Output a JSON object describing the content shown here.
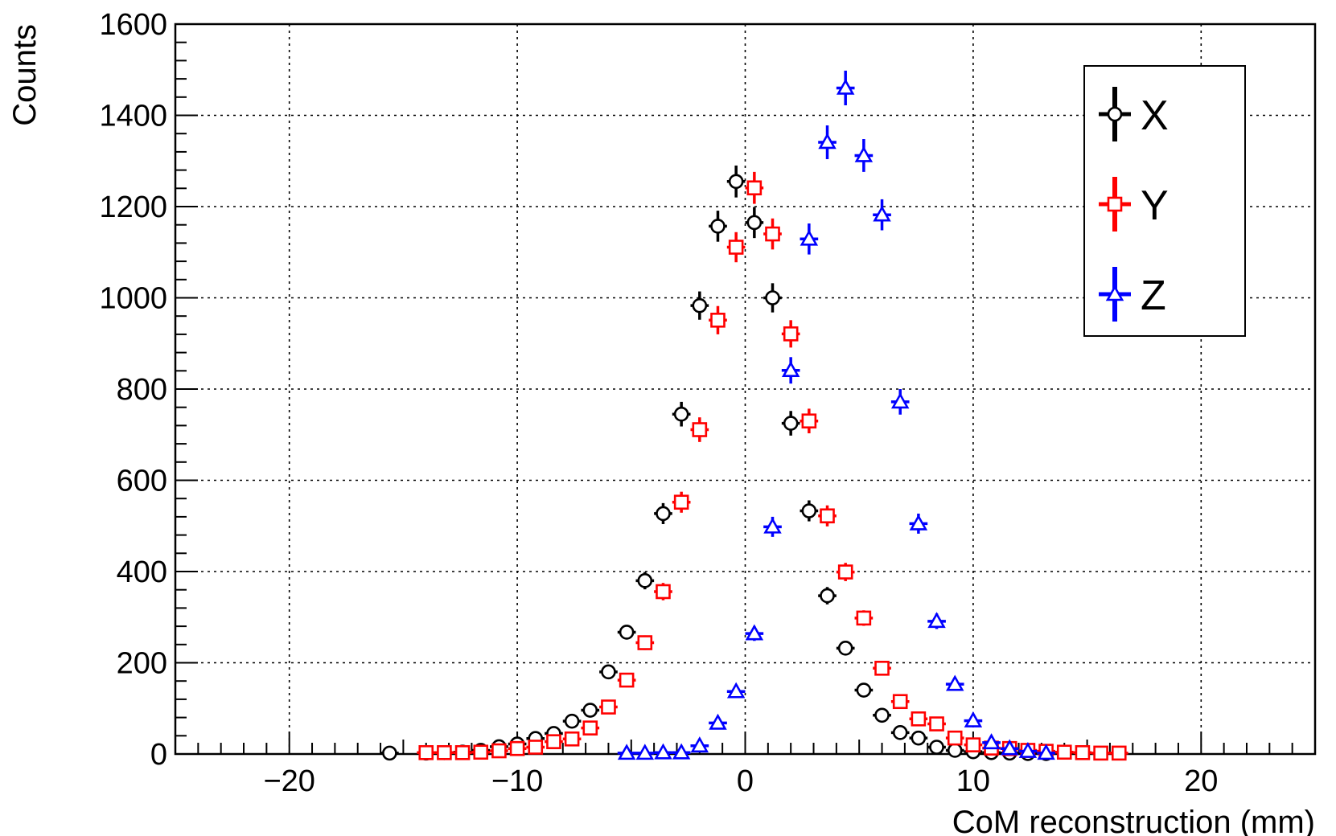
{
  "chart_data": {
    "type": "scatter",
    "title": "",
    "xlabel": "CoM reconstruction (mm)",
    "ylabel": "Counts",
    "xlim": [
      -25,
      25
    ],
    "ylim": [
      0,
      1600
    ],
    "xticks": [
      -20,
      -10,
      0,
      10,
      20
    ],
    "xtick_labels": [
      "−20",
      "−10",
      "0",
      "10",
      "20"
    ],
    "yticks": [
      0,
      200,
      400,
      600,
      800,
      1000,
      1200,
      1400,
      1600
    ],
    "ytick_labels": [
      "0",
      "200",
      "400",
      "600",
      "800",
      "1000",
      "1200",
      "1400",
      "1600"
    ],
    "grid": true,
    "legend_position": "top-right",
    "series": [
      {
        "name": "X",
        "color": "#000000",
        "marker": "circle",
        "x": [
          -15.6,
          -14.0,
          -13.2,
          -12.4,
          -11.6,
          -10.8,
          -10.0,
          -9.2,
          -8.4,
          -7.6,
          -6.8,
          -6.0,
          -5.2,
          -4.4,
          -3.6,
          -2.8,
          -2.0,
          -1.2,
          -0.4,
          0.4,
          1.2,
          2.0,
          2.8,
          3.6,
          4.4,
          5.2,
          6.0,
          6.8,
          7.6,
          8.4,
          9.2,
          10.0,
          10.8,
          11.6,
          12.4,
          13.2
        ],
        "y": [
          2,
          2,
          3,
          4,
          8,
          16,
          22,
          34,
          45,
          72,
          96,
          180,
          267,
          380,
          527,
          745,
          983,
          1157,
          1255,
          1165,
          1000,
          725,
          533,
          347,
          232,
          140,
          85,
          47,
          35,
          15,
          8,
          5,
          3,
          2,
          1,
          1
        ],
        "yerr": [
          1,
          1,
          2,
          2,
          3,
          4,
          5,
          6,
          7,
          8,
          10,
          13,
          16,
          19,
          23,
          27,
          31,
          34,
          35,
          34,
          32,
          27,
          23,
          19,
          15,
          12,
          9,
          7,
          6,
          4,
          3,
          2,
          2,
          1,
          1,
          1
        ]
      },
      {
        "name": "Y",
        "color": "#ff0000",
        "marker": "square",
        "x": [
          -14.0,
          -13.2,
          -12.4,
          -11.6,
          -10.8,
          -10.0,
          -9.2,
          -8.4,
          -7.6,
          -6.8,
          -6.0,
          -5.2,
          -4.4,
          -3.6,
          -2.8,
          -2.0,
          -1.2,
          -0.4,
          0.4,
          1.2,
          2.0,
          2.8,
          3.6,
          4.4,
          5.2,
          6.0,
          6.8,
          7.6,
          8.4,
          9.2,
          10.0,
          10.8,
          11.6,
          12.4,
          13.2,
          14.0,
          14.8,
          15.6,
          16.4
        ],
        "y": [
          3,
          3,
          3,
          4,
          7,
          12,
          15,
          27,
          33,
          57,
          103,
          162,
          244,
          356,
          552,
          711,
          951,
          1111,
          1241,
          1140,
          921,
          730,
          522,
          399,
          298,
          188,
          115,
          77,
          66,
          35,
          20,
          13,
          12,
          8,
          6,
          4,
          3,
          2,
          2
        ],
        "yerr": [
          2,
          2,
          2,
          2,
          3,
          3,
          4,
          5,
          6,
          8,
          10,
          13,
          16,
          19,
          23,
          27,
          31,
          33,
          35,
          34,
          30,
          27,
          23,
          20,
          17,
          14,
          11,
          9,
          8,
          6,
          4,
          4,
          3,
          3,
          2,
          2,
          2,
          1,
          1
        ]
      },
      {
        "name": "Z",
        "color": "#0000ff",
        "marker": "triangle",
        "x": [
          -5.2,
          -4.4,
          -3.6,
          -2.8,
          -2.0,
          -1.2,
          -0.4,
          0.4,
          1.2,
          2.0,
          2.8,
          3.6,
          4.4,
          5.2,
          6.0,
          6.8,
          7.6,
          8.4,
          9.2,
          10.0,
          10.8,
          11.6,
          12.4,
          13.2
        ],
        "y": [
          2,
          2,
          3,
          3,
          18,
          68,
          137,
          264,
          498,
          841,
          1129,
          1341,
          1460,
          1312,
          1182,
          772,
          505,
          291,
          153,
          73,
          25,
          12,
          6,
          2
        ],
        "yerr": [
          1,
          1,
          2,
          2,
          4,
          8,
          12,
          16,
          22,
          29,
          34,
          37,
          38,
          36,
          34,
          28,
          22,
          17,
          12,
          8,
          5,
          3,
          2,
          1
        ]
      }
    ]
  }
}
